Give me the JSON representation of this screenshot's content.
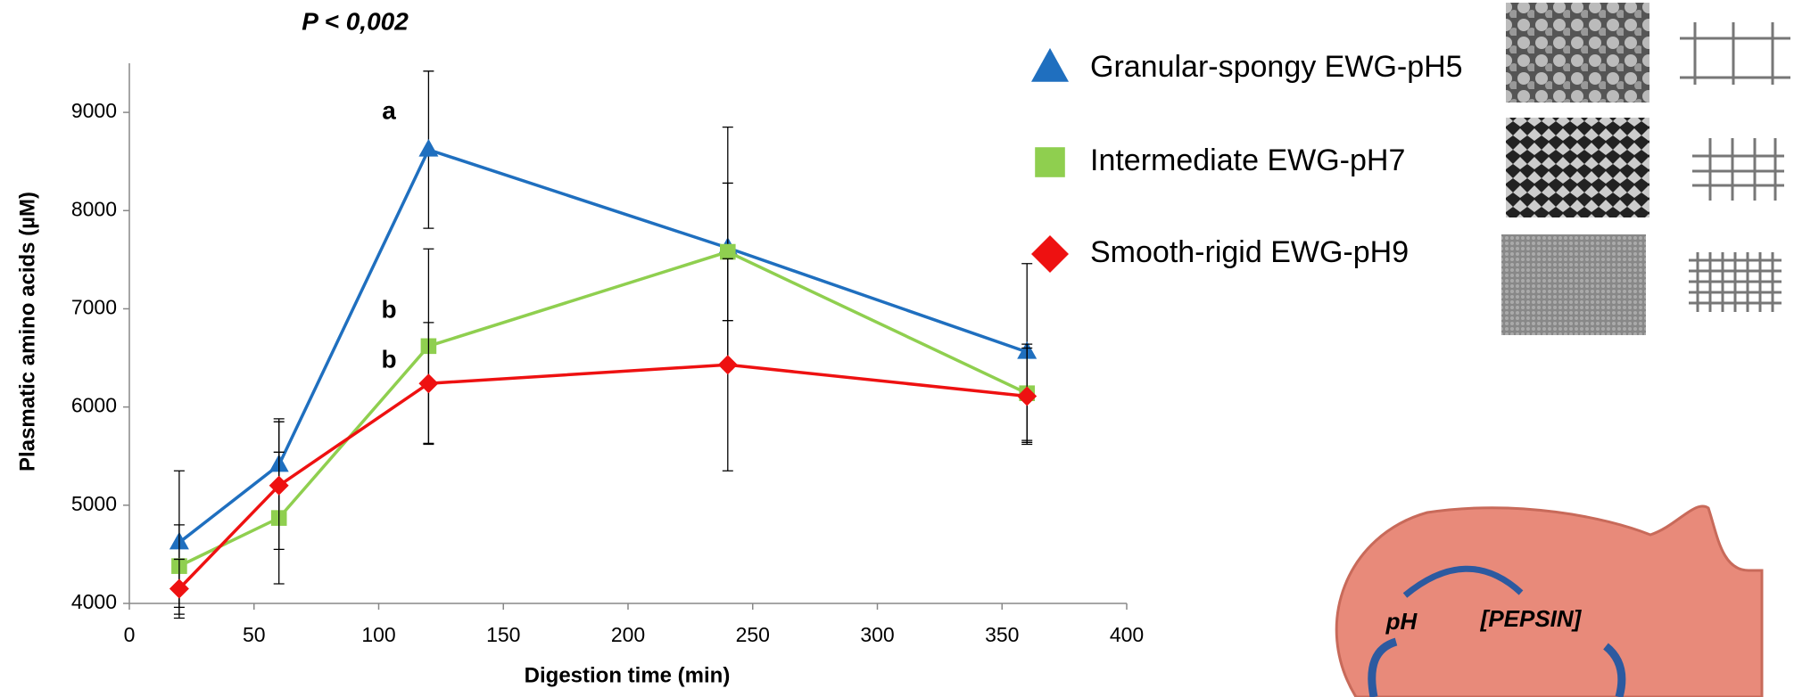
{
  "chart_data": {
    "type": "line",
    "title": "P < 0,002",
    "x_label": "Digestion time (min)",
    "y_label": "Plasmatic amino acids (µM)",
    "x": [
      20,
      60,
      120,
      240,
      360
    ],
    "series": [
      {
        "name": "Granular-spongy EWG-pH5",
        "color": "#1f6fbf",
        "marker": "triangle",
        "values": [
          4620,
          5410,
          8620,
          7620,
          6560
        ],
        "errors": [
          730,
          470,
          800,
          1230,
          900
        ]
      },
      {
        "name": "Intermediate EWG-pH7",
        "color": "#8fcf4f",
        "marker": "square",
        "values": [
          4380,
          4870,
          6620,
          7580,
          6140
        ],
        "errors": [
          420,
          670,
          990,
          700,
          500
        ]
      },
      {
        "name": "Smooth-rigid EWG-pH9",
        "color": "#ee1111",
        "marker": "diamond",
        "values": [
          4150,
          5200,
          6240,
          6430,
          6110
        ],
        "errors": [
          300,
          650,
          620,
          1080,
          490
        ]
      }
    ],
    "xlim": [
      0,
      400
    ],
    "xticks": [
      0,
      50,
      100,
      150,
      200,
      250,
      300,
      350,
      400
    ],
    "ylim": [
      4000,
      9500
    ],
    "yticks": [
      4000,
      5000,
      6000,
      7000,
      8000,
      9000
    ],
    "annotations": [
      "a",
      "b",
      "b"
    ],
    "diagram_labels": [
      "pH",
      "[PEPSIN]"
    ]
  }
}
